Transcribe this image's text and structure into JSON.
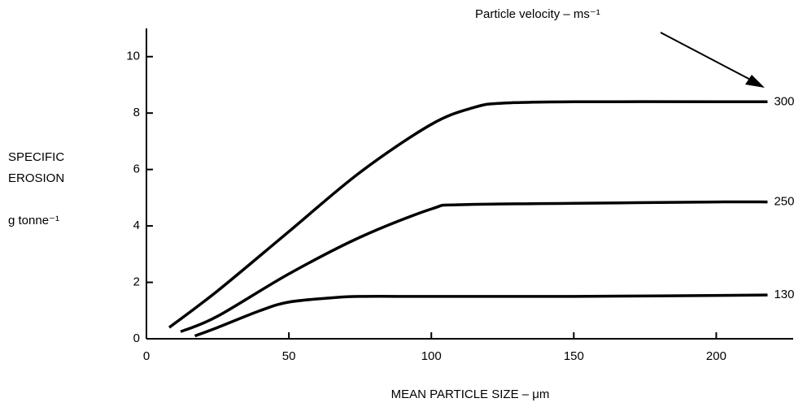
{
  "chart_data": {
    "type": "line",
    "annotation": "Particle velocity – ms⁻¹",
    "ylabel": [
      "SPECIFIC",
      "EROSION",
      "g tonne⁻¹"
    ],
    "xlabel": "MEAN PARTICLE SIZE – μm",
    "xlim": [
      0,
      227
    ],
    "ylim": [
      0,
      11
    ],
    "xticks": [
      0,
      50,
      100,
      150,
      200
    ],
    "yticks": [
      0,
      2,
      4,
      6,
      8,
      10
    ],
    "color": "#000000",
    "series": [
      {
        "name": "300",
        "x": [
          8,
          25,
          50,
          75,
          100,
          115,
          125,
          150,
          200,
          218
        ],
        "values": [
          0.4,
          1.7,
          3.8,
          5.9,
          7.6,
          8.2,
          8.35,
          8.4,
          8.4,
          8.4
        ]
      },
      {
        "name": "250",
        "x": [
          12,
          25,
          50,
          75,
          100,
          110,
          150,
          200,
          218
        ],
        "values": [
          0.25,
          0.8,
          2.3,
          3.6,
          4.6,
          4.75,
          4.8,
          4.85,
          4.85
        ]
      },
      {
        "name": "130",
        "x": [
          17,
          25,
          40,
          50,
          65,
          75,
          100,
          150,
          218
        ],
        "values": [
          0.1,
          0.4,
          1.0,
          1.3,
          1.45,
          1.5,
          1.5,
          1.5,
          1.55
        ]
      }
    ]
  }
}
